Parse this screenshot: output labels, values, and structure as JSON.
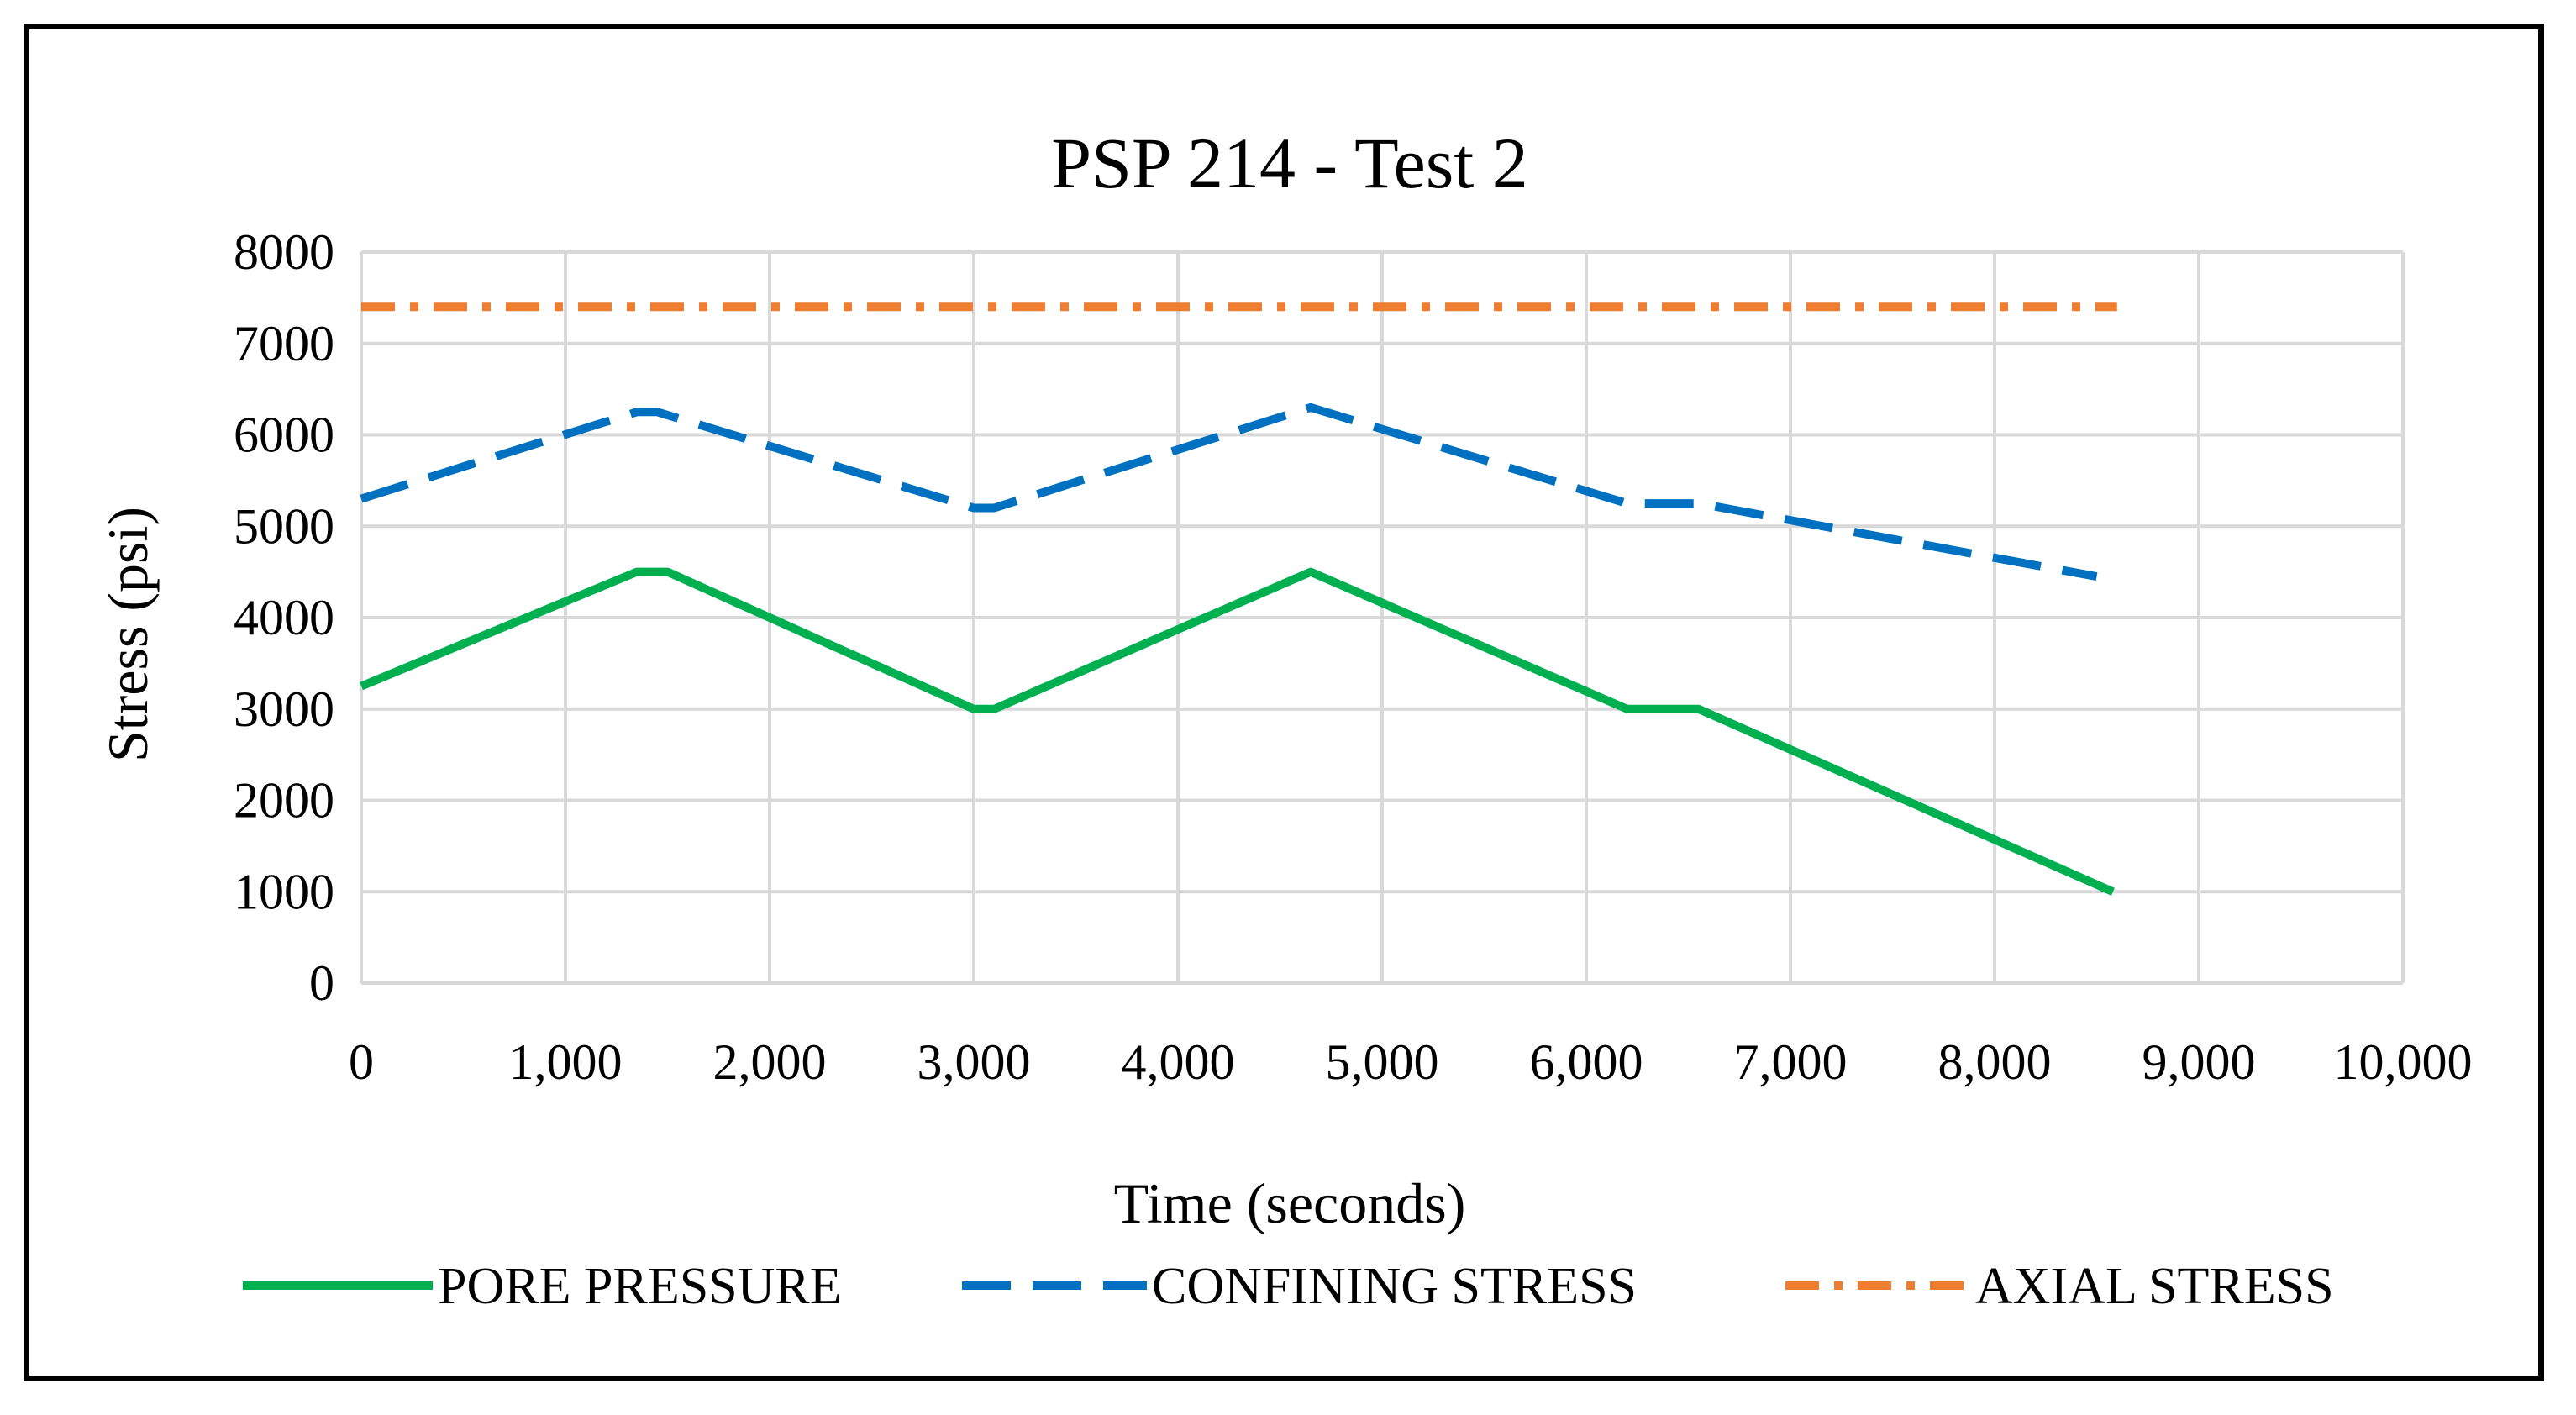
{
  "chart_data": {
    "type": "line",
    "title": "PSP 214 - Test 2",
    "xlabel": "Time (seconds)",
    "ylabel": "Stress (psi)",
    "xlim": [
      0,
      10000
    ],
    "ylim": [
      0,
      8000
    ],
    "x_ticks": [
      0,
      1000,
      2000,
      3000,
      4000,
      5000,
      6000,
      7000,
      8000,
      9000,
      10000
    ],
    "x_tick_labels": [
      "0",
      "1,000",
      "2,000",
      "3,000",
      "4,000",
      "5,000",
      "6,000",
      "7,000",
      "8,000",
      "9,000",
      "10,000"
    ],
    "y_ticks": [
      0,
      1000,
      2000,
      3000,
      4000,
      5000,
      6000,
      7000,
      8000
    ],
    "y_tick_labels": [
      "0",
      "1000",
      "2000",
      "3000",
      "4000",
      "5000",
      "6000",
      "7000",
      "8000"
    ],
    "grid": true,
    "legend_position": "bottom",
    "series": [
      {
        "name": "PORE PRESSURE",
        "color": "#00B050",
        "style": "solid",
        "x": [
          0,
          1350,
          1500,
          3000,
          3100,
          4650,
          6200,
          6550,
          8580
        ],
        "y": [
          3250,
          4500,
          4500,
          3000,
          3000,
          4500,
          3000,
          3000,
          1000
        ]
      },
      {
        "name": "CONFINING STRESS",
        "color": "#0070C0",
        "style": "dash",
        "x": [
          0,
          1350,
          1450,
          3000,
          3100,
          4650,
          6200,
          6550,
          8500
        ],
        "y": [
          5300,
          6250,
          6250,
          5200,
          5200,
          6300,
          5250,
          5250,
          4450
        ]
      },
      {
        "name": "AXIAL STRESS",
        "color": "#ED7D31",
        "style": "dashdot",
        "x": [
          0,
          8600
        ],
        "y": [
          7400,
          7400
        ]
      }
    ]
  }
}
